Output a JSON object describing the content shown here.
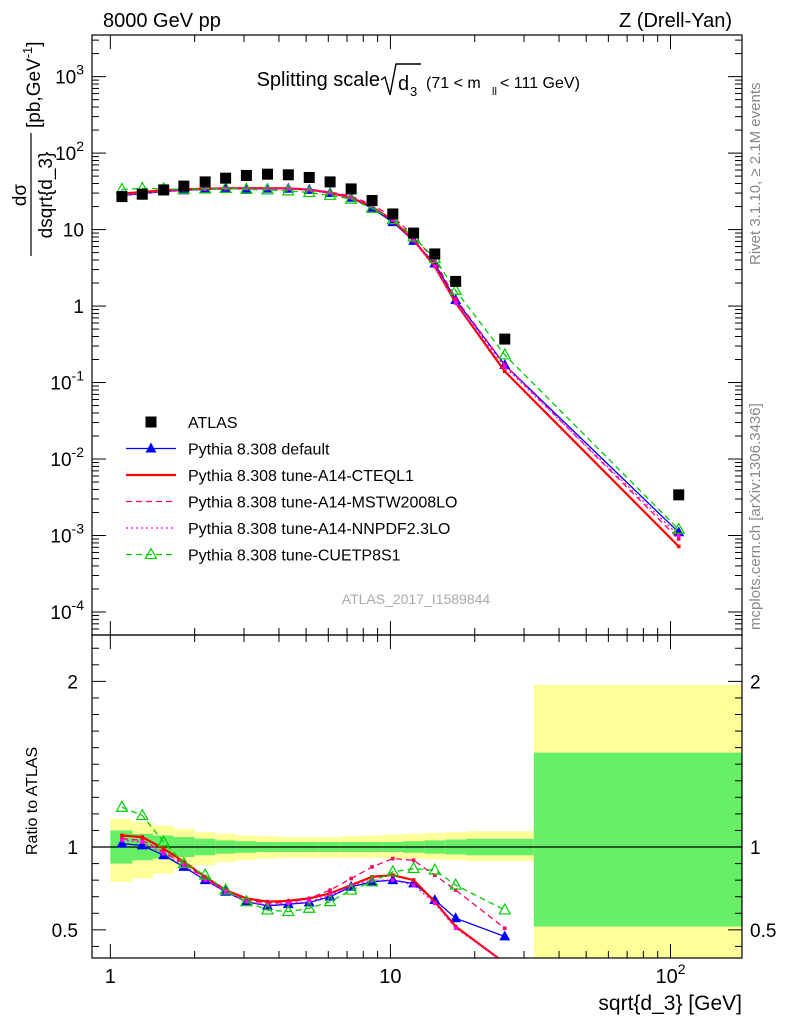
{
  "header": {
    "left": "8000 GeV pp",
    "right": "Z (Drell-Yan)",
    "plot_title": "Splitting scale",
    "plot_title_sym": "d",
    "plot_title_sub": "3",
    "plot_title_range": "(71 < m",
    "plot_title_range_sub": "ll",
    "plot_title_range_end": "< 111 GeV)"
  },
  "side": {
    "rivet": "Rivet 3.1.10, ≥ 2.1M events",
    "mcplots": "mcplots.cern.ch [arXiv:1306.3436]"
  },
  "watermark": "ATLAS_2017_I1589844",
  "y_label_main": {
    "num": "dσ",
    "den": "dsqrt{d_3}",
    "unit": "[pb,GeV",
    "unit_sup": "-1",
    "unit_end": "]"
  },
  "y_label_ratio": "Ratio to ATLAS",
  "x_label": "sqrt{d_3} [GeV]",
  "legend": [
    {
      "label": "ATLAS",
      "color": "#000000",
      "marker": "square",
      "line": "none"
    },
    {
      "label": "Pythia 8.308 default",
      "color": "#0000ff",
      "marker": "triangle",
      "line": "solid"
    },
    {
      "label": "Pythia 8.308 tune-A14-CTEQL1",
      "color": "#ff0000",
      "marker": "none",
      "line": "solid"
    },
    {
      "label": "Pythia 8.308 tune-A14-MSTW2008LO",
      "color": "#ff0066",
      "marker": "none",
      "line": "dashed"
    },
    {
      "label": "Pythia 8.308 tune-A14-NNPDF2.3LO",
      "color": "#ff00ff",
      "marker": "none",
      "line": "dotted"
    },
    {
      "label": "Pythia 8.308 tune-CUETP8S1",
      "color": "#00cc00",
      "marker": "open-triangle",
      "line": "dashed"
    }
  ],
  "chart_data": {
    "type": "line",
    "x_scale": "log",
    "x_range": [
      0.86,
      180
    ],
    "x_ticks": [
      "1",
      "10",
      "10^2"
    ],
    "main": {
      "y_scale": "log",
      "y_range": [
        5e-05,
        3500
      ],
      "y_ticks": [
        "10^-4",
        "10^-3",
        "10^-2",
        "10^-1",
        "1",
        "10",
        "10^2",
        "10^3"
      ],
      "x": [
        1.1,
        1.3,
        1.55,
        1.83,
        2.18,
        2.58,
        3.06,
        3.64,
        4.32,
        5.13,
        6.09,
        7.24,
        8.6,
        10.2,
        12.1,
        14.4,
        17.1,
        25.6,
        107
      ],
      "series": [
        {
          "name": "ATLAS",
          "values": [
            27,
            29,
            33,
            37,
            42,
            47,
            51,
            53,
            52,
            48,
            42,
            34,
            24,
            16,
            9,
            4.8,
            2.1,
            0.37,
            0.0034
          ]
        },
        {
          "name": "Pythia 8.308 default",
          "values": [
            27.8,
            29.5,
            31.5,
            32.5,
            33.5,
            34,
            34.2,
            34.3,
            34.2,
            33,
            30,
            26,
            19,
            12.5,
            7.1,
            3.6,
            1.2,
            0.17,
            0.0011
          ]
        },
        {
          "name": "Pythia 8.308 tune-A14-CTEQL1",
          "values": [
            29.5,
            31,
            32.5,
            33.5,
            34.2,
            34.6,
            34.7,
            34.7,
            34.5,
            33.3,
            30.3,
            26.3,
            19.8,
            13.2,
            7.3,
            3.3,
            1.1,
            0.14,
            0.00072
          ]
        },
        {
          "name": "Pythia 8.308 tune-A14-MSTW2008LO",
          "values": [
            28.3,
            30,
            32,
            33,
            34,
            34.4,
            34.6,
            34.6,
            34.4,
            33.5,
            31,
            27.5,
            21,
            14.8,
            8.3,
            3.9,
            1.25,
            0.17,
            0.0009
          ]
        },
        {
          "name": "Pythia 8.308 tune-A14-NNPDF2.3LO",
          "values": [
            28,
            29.8,
            31.8,
            32.8,
            33.8,
            34.2,
            34.4,
            34.4,
            34.2,
            33.1,
            30.2,
            26.5,
            20,
            13.3,
            7.2,
            3.3,
            1.1,
            0.16,
            0.001
          ]
        },
        {
          "name": "Pythia 8.308 tune-CUETP8S1",
          "values": [
            33.5,
            34.5,
            34,
            33.5,
            34,
            34.5,
            33.5,
            33,
            32,
            30.5,
            28,
            25,
            19,
            13.5,
            8,
            4.2,
            1.6,
            0.23,
            0.0012
          ]
        }
      ]
    },
    "ratio": {
      "y_scale": "linear",
      "y_range": [
        0.33,
        2.28
      ],
      "y_ticks": [
        "0.5",
        "1",
        "2"
      ],
      "x": [
        1.1,
        1.3,
        1.55,
        1.83,
        2.18,
        2.58,
        3.06,
        3.64,
        4.32,
        5.13,
        6.09,
        7.24,
        8.6,
        10.2,
        12.1,
        14.4,
        17.1,
        25.6
      ],
      "series": [
        {
          "name": "Pythia 8.308 default",
          "values": [
            1.02,
            1.01,
            0.95,
            0.88,
            0.8,
            0.73,
            0.67,
            0.645,
            0.655,
            0.665,
            0.7,
            0.76,
            0.79,
            0.8,
            0.78,
            0.68,
            0.57,
            0.46
          ]
        },
        {
          "name": "Pythia 8.308 tune-A14-CTEQL1",
          "values": [
            1.07,
            1.06,
            0.99,
            0.91,
            0.82,
            0.74,
            0.69,
            0.67,
            0.675,
            0.69,
            0.72,
            0.77,
            0.82,
            0.83,
            0.8,
            0.67,
            0.52,
            0.3
          ]
        },
        {
          "name": "Pythia 8.308 tune-A14-MSTW2008LO",
          "values": [
            1.05,
            1.04,
            0.97,
            0.9,
            0.81,
            0.74,
            0.68,
            0.66,
            0.665,
            0.69,
            0.74,
            0.81,
            0.88,
            0.93,
            0.92,
            0.83,
            0.74,
            0.51
          ]
        },
        {
          "name": "Pythia 8.308 tune-A14-NNPDF2.3LO",
          "values": [
            1.04,
            1.03,
            0.96,
            0.89,
            0.8,
            0.73,
            0.67,
            0.65,
            0.66,
            0.67,
            0.71,
            0.77,
            0.8,
            0.8,
            0.77,
            0.66,
            0.51,
            0.3
          ]
        },
        {
          "name": "Pythia 8.308 tune-CUETP8S1",
          "values": [
            1.24,
            1.19,
            1.03,
            0.9,
            0.83,
            0.74,
            0.67,
            0.62,
            0.61,
            0.63,
            0.67,
            0.74,
            0.79,
            0.85,
            0.87,
            0.86,
            0.77,
            0.62
          ]
        }
      ],
      "bands": {
        "edges": [
          1.0,
          1.2,
          1.42,
          1.68,
          2.0,
          2.37,
          2.8,
          3.33,
          3.94,
          4.68,
          5.55,
          6.62,
          7.85,
          9.35,
          11.1,
          13.2,
          15.7,
          18.7,
          32.5,
          180
        ],
        "stat_lo": [
          0.9,
          0.92,
          0.93,
          0.94,
          0.95,
          0.96,
          0.965,
          0.97,
          0.97,
          0.97,
          0.97,
          0.97,
          0.97,
          0.97,
          0.965,
          0.96,
          0.955,
          0.95,
          0.52
        ],
        "stat_hi": [
          1.1,
          1.08,
          1.07,
          1.06,
          1.05,
          1.04,
          1.035,
          1.03,
          1.03,
          1.03,
          1.03,
          1.03,
          1.03,
          1.03,
          1.035,
          1.04,
          1.045,
          1.05,
          1.57
        ],
        "tot_lo": [
          0.79,
          0.81,
          0.84,
          0.87,
          0.89,
          0.91,
          0.92,
          0.93,
          0.935,
          0.935,
          0.935,
          0.935,
          0.935,
          0.93,
          0.93,
          0.925,
          0.92,
          0.915,
          0.33
        ],
        "tot_hi": [
          1.17,
          1.15,
          1.13,
          1.11,
          1.09,
          1.08,
          1.07,
          1.065,
          1.06,
          1.06,
          1.06,
          1.065,
          1.07,
          1.075,
          1.08,
          1.085,
          1.09,
          1.095,
          1.98
        ],
        "stat_color": "#66ee66",
        "tot_color": "#ffff99"
      }
    }
  }
}
